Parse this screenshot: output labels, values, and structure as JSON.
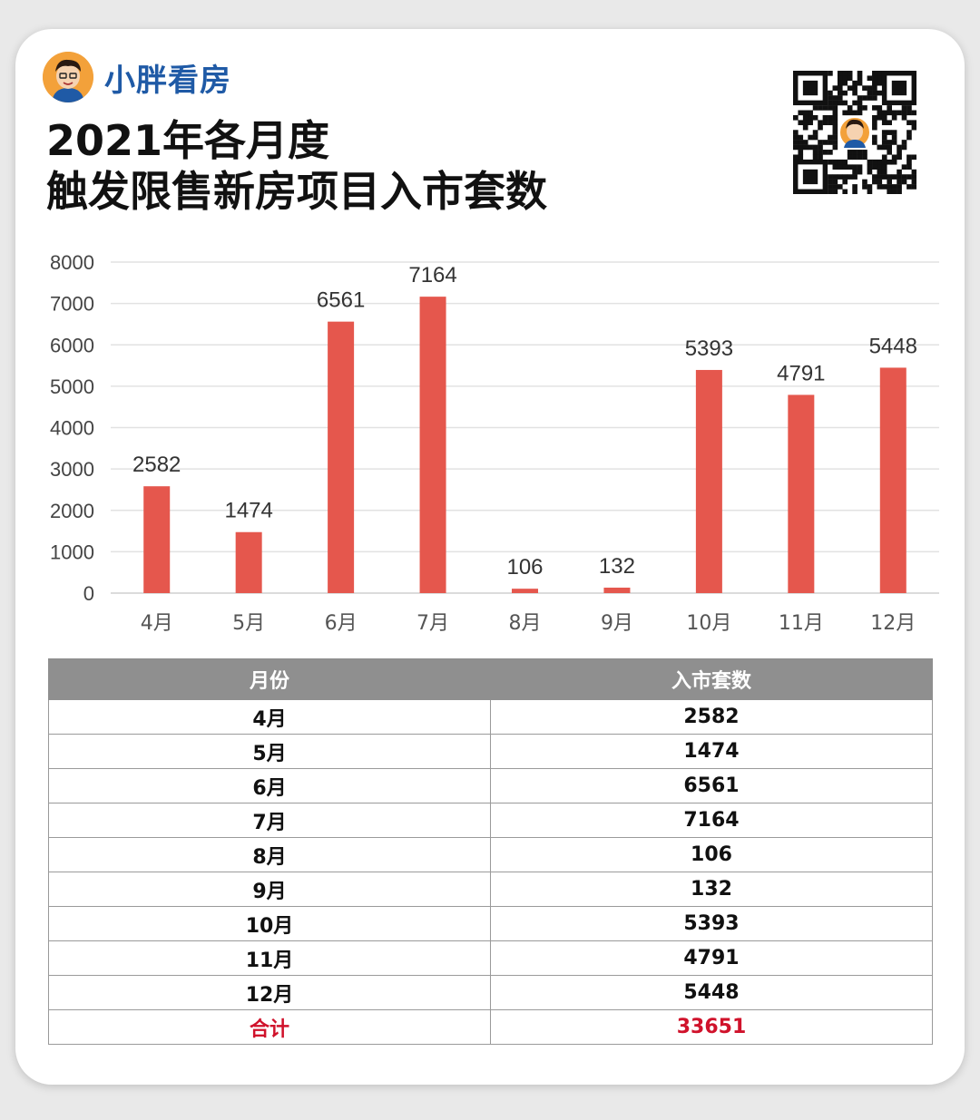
{
  "brand": {
    "name": "小胖看房",
    "avatar_icon": "cartoon-avatar-icon"
  },
  "title": {
    "line1": "2021年各月度",
    "line2": "触发限售新房项目入市套数"
  },
  "qr": {
    "icon": "qr-code-icon"
  },
  "colors": {
    "bar": "#e5574d",
    "brand": "#1f5aa6",
    "header_bg": "#8f8f8f",
    "total_text": "#d0122b"
  },
  "chart_data": {
    "type": "bar",
    "title": "",
    "xlabel": "",
    "ylabel": "",
    "categories": [
      "4月",
      "5月",
      "6月",
      "7月",
      "8月",
      "9月",
      "10月",
      "11月",
      "12月"
    ],
    "values": [
      2582,
      1474,
      6561,
      7164,
      106,
      132,
      5393,
      4791,
      5448
    ],
    "ylim": [
      0,
      8000
    ],
    "yticks": [
      0,
      1000,
      2000,
      3000,
      4000,
      5000,
      6000,
      7000,
      8000
    ],
    "grid": true,
    "data_labels": true
  },
  "table": {
    "headers": [
      "月份",
      "入市套数"
    ],
    "rows": [
      [
        "4月",
        "2582"
      ],
      [
        "5月",
        "1474"
      ],
      [
        "6月",
        "6561"
      ],
      [
        "7月",
        "7164"
      ],
      [
        "8月",
        "106"
      ],
      [
        "9月",
        "132"
      ],
      [
        "10月",
        "5393"
      ],
      [
        "11月",
        "4791"
      ],
      [
        "12月",
        "5448"
      ]
    ],
    "total": [
      "合计",
      "33651"
    ]
  }
}
